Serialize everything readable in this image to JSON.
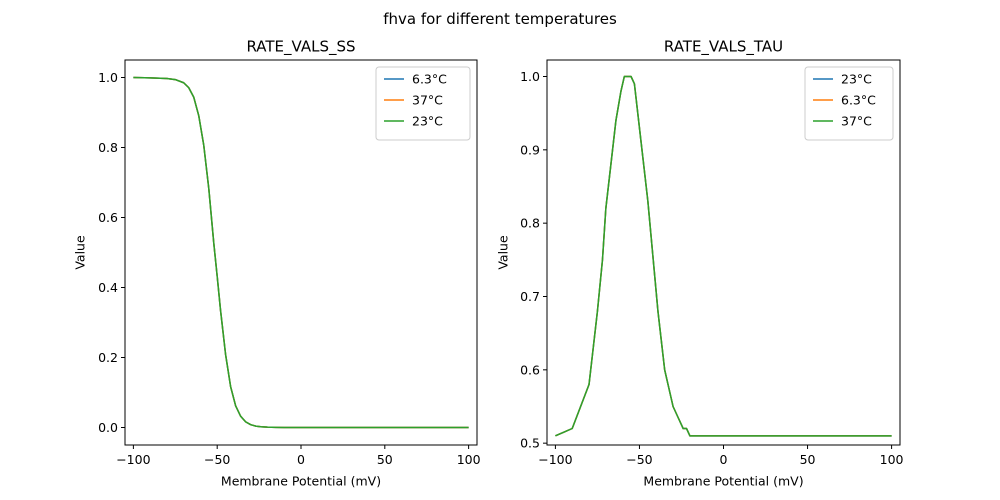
{
  "figure": {
    "title": "fhva for different temperatures"
  },
  "chart_data": [
    {
      "type": "line",
      "title": "RATE_VALS_SS",
      "xlabel": "Membrane Potential (mV)",
      "ylabel": "Value",
      "xlim": [
        -105,
        105
      ],
      "ylim": [
        -0.05,
        1.05
      ],
      "xticks": [
        -100,
        -50,
        0,
        50,
        100
      ],
      "yticks": [
        0.0,
        0.2,
        0.4,
        0.6,
        0.8,
        1.0
      ],
      "xtick_labels": [
        "−100",
        "−50",
        "0",
        "50",
        "100"
      ],
      "ytick_labels": [
        "0.0",
        "0.2",
        "0.4",
        "0.6",
        "0.8",
        "1.0"
      ],
      "grid": false,
      "legend_position": "top-right",
      "x": [
        -100,
        -90,
        -80,
        -75,
        -70,
        -67,
        -64,
        -61,
        -58,
        -55,
        -52,
        -50,
        -48,
        -45,
        -42,
        -39,
        -36,
        -33,
        -30,
        -27,
        -24,
        -20,
        -15,
        -10,
        -5,
        0,
        20,
        50,
        100
      ],
      "series": [
        {
          "name": "6.3°C",
          "color": "#1f77b4",
          "values": [
            1.0,
            0.999,
            0.997,
            0.994,
            0.985,
            0.971,
            0.944,
            0.891,
            0.806,
            0.682,
            0.525,
            0.432,
            0.335,
            0.209,
            0.117,
            0.062,
            0.032,
            0.016,
            0.008,
            0.004,
            0.002,
            0.001,
            0.0003,
            0.0001,
            0.0,
            0.0,
            0.0,
            0.0,
            0.0
          ]
        },
        {
          "name": "37°C",
          "color": "#ff7f0e",
          "values": [
            1.0,
            0.999,
            0.997,
            0.994,
            0.985,
            0.971,
            0.944,
            0.891,
            0.806,
            0.682,
            0.525,
            0.432,
            0.335,
            0.209,
            0.117,
            0.062,
            0.032,
            0.016,
            0.008,
            0.004,
            0.002,
            0.001,
            0.0003,
            0.0001,
            0.0,
            0.0,
            0.0,
            0.0,
            0.0
          ]
        },
        {
          "name": "23°C",
          "color": "#2ca02c",
          "values": [
            1.0,
            0.999,
            0.997,
            0.994,
            0.985,
            0.971,
            0.944,
            0.891,
            0.806,
            0.682,
            0.525,
            0.432,
            0.335,
            0.209,
            0.117,
            0.062,
            0.032,
            0.016,
            0.008,
            0.004,
            0.002,
            0.001,
            0.0003,
            0.0001,
            0.0,
            0.0,
            0.0,
            0.0,
            0.0
          ]
        }
      ]
    },
    {
      "type": "line",
      "title": "RATE_VALS_TAU",
      "xlabel": "Membrane Potential (mV)",
      "ylabel": "Value",
      "xlim": [
        -105,
        105
      ],
      "ylim": [
        0.4975,
        1.0225
      ],
      "xticks": [
        -100,
        -50,
        0,
        50,
        100
      ],
      "yticks": [
        0.5,
        0.6,
        0.7,
        0.8,
        0.9,
        1.0
      ],
      "xtick_labels": [
        "−100",
        "−50",
        "0",
        "50",
        "100"
      ],
      "ytick_labels": [
        "0.5",
        "0.6",
        "0.7",
        "0.8",
        "0.9",
        "1.0"
      ],
      "grid": false,
      "legend_position": "top-right",
      "x": [
        -100,
        -95,
        -90,
        -85,
        -80,
        -78,
        -75,
        -72,
        -70,
        -67,
        -64,
        -61,
        -59,
        -57,
        -55,
        -53,
        -51,
        -49,
        -47,
        -45,
        -43,
        -41,
        -39,
        -37,
        -35,
        -33,
        -30,
        -27,
        -24,
        -22,
        -20,
        -18,
        0,
        50,
        100
      ],
      "series": [
        {
          "name": "23°C",
          "color": "#1f77b4",
          "values": [
            0.51,
            0.515,
            0.52,
            0.55,
            0.58,
            0.62,
            0.68,
            0.75,
            0.82,
            0.88,
            0.94,
            0.98,
            1.0,
            1.0,
            1.0,
            0.99,
            0.95,
            0.91,
            0.87,
            0.83,
            0.78,
            0.73,
            0.68,
            0.64,
            0.6,
            0.58,
            0.55,
            0.535,
            0.52,
            0.52,
            0.51,
            0.51,
            0.51,
            0.51,
            0.51
          ]
        },
        {
          "name": "6.3°C",
          "color": "#ff7f0e",
          "values": [
            0.51,
            0.515,
            0.52,
            0.55,
            0.58,
            0.62,
            0.68,
            0.75,
            0.82,
            0.88,
            0.94,
            0.98,
            1.0,
            1.0,
            1.0,
            0.99,
            0.95,
            0.91,
            0.87,
            0.83,
            0.78,
            0.73,
            0.68,
            0.64,
            0.6,
            0.58,
            0.55,
            0.535,
            0.52,
            0.52,
            0.51,
            0.51,
            0.51,
            0.51,
            0.51
          ]
        },
        {
          "name": "37°C",
          "color": "#2ca02c",
          "values": [
            0.51,
            0.515,
            0.52,
            0.55,
            0.58,
            0.62,
            0.68,
            0.75,
            0.82,
            0.88,
            0.94,
            0.98,
            1.0,
            1.0,
            1.0,
            0.99,
            0.95,
            0.91,
            0.87,
            0.83,
            0.78,
            0.73,
            0.68,
            0.64,
            0.6,
            0.58,
            0.55,
            0.535,
            0.52,
            0.52,
            0.51,
            0.51,
            0.51,
            0.51,
            0.51
          ]
        }
      ]
    }
  ]
}
